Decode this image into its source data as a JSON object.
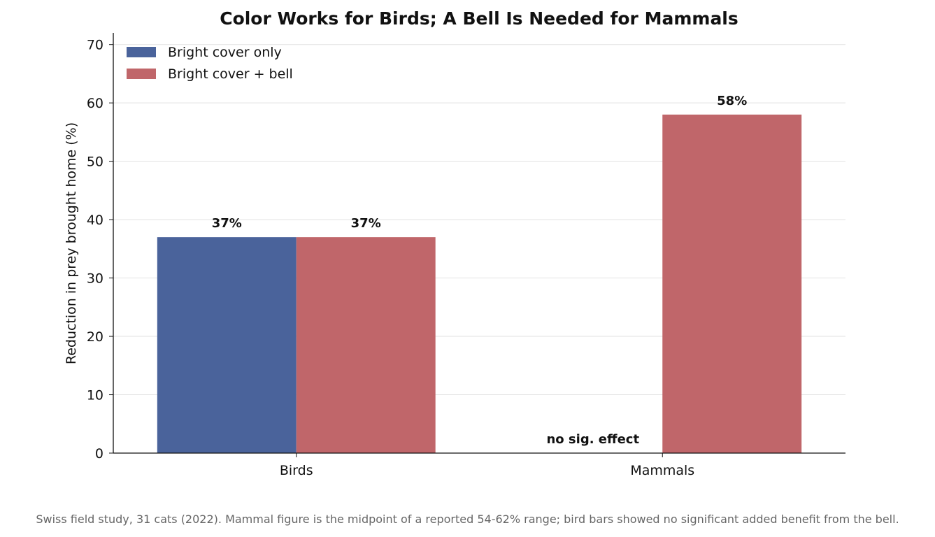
{
  "chart_data": {
    "type": "bar",
    "title": "Color Works for Birds; A Bell Is Needed for Mammals",
    "ylabel": "Reduction in prey brought home (%)",
    "xlabel": "",
    "categories": [
      "Birds",
      "Mammals"
    ],
    "ylim": [
      0,
      72
    ],
    "yticks": [
      0,
      10,
      20,
      30,
      40,
      50,
      60,
      70
    ],
    "grid": "horizontal",
    "legend_position": "top-left",
    "series": [
      {
        "name": "Bright cover only",
        "color": "#4a639b",
        "values": [
          37,
          null
        ],
        "labels": [
          "37%",
          null
        ]
      },
      {
        "name": "Bright cover + bell",
        "color": "#c0666a",
        "values": [
          37,
          58
        ],
        "labels": [
          "37%",
          "58%"
        ]
      }
    ],
    "annotations": [
      {
        "text": "no sig. effect",
        "category": "Mammals",
        "series": "Bright cover only"
      }
    ]
  },
  "caption": "Swiss field study, 31 cats (2022). Mammal figure is the midpoint of a reported 54-62% range; bird bars showed no significant added benefit from the bell."
}
